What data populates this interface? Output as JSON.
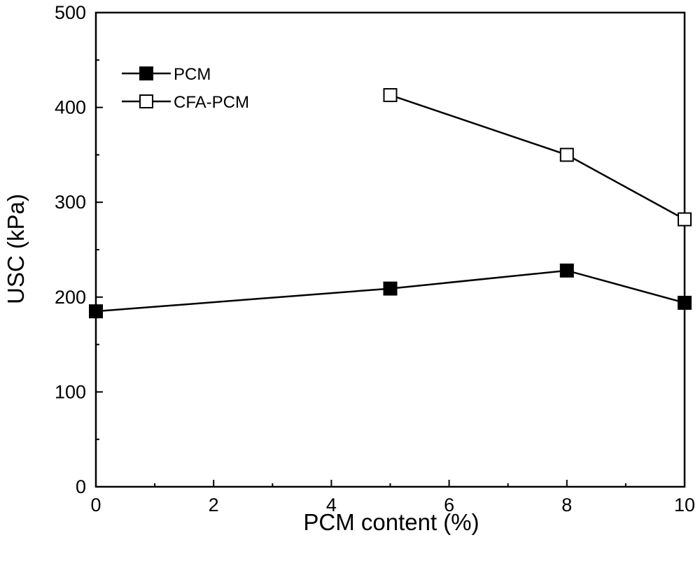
{
  "chart_data": {
    "type": "line",
    "xlabel": "PCM content (%)",
    "ylabel": "USC (kPa)",
    "xlim": [
      0,
      10
    ],
    "ylim": [
      0,
      500
    ],
    "x_ticks": [
      "0",
      "2",
      "4",
      "6",
      "8",
      "10"
    ],
    "y_ticks": [
      "0",
      "100",
      "200",
      "300",
      "400",
      "500"
    ],
    "grid": false,
    "legend_position": "top-left",
    "series": [
      {
        "name": "PCM",
        "marker": "filled-square",
        "x": [
          0,
          5,
          8,
          10
        ],
        "y": [
          185,
          209,
          228,
          194
        ]
      },
      {
        "name": "CFA-PCM",
        "marker": "open-square",
        "x": [
          5,
          8,
          10
        ],
        "y": [
          413,
          350,
          282
        ]
      }
    ]
  }
}
